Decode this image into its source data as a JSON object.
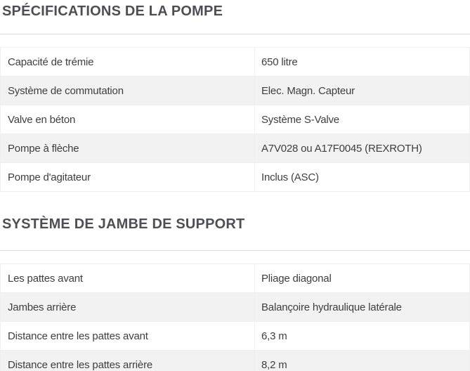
{
  "colors": {
    "title": "#4e4e57",
    "text": "#3e3e3e",
    "row_alternate": "#f2f2f2",
    "cell_border": "#efefef",
    "divider_rule": "#d9d9d9",
    "background": "#ffffff"
  },
  "sections": [
    {
      "title": "SPÉCIFICATIONS DE LA POMPE",
      "rows": [
        {
          "label": "Capacité de trémie",
          "value": "650 litre"
        },
        {
          "label": "Système de commutation",
          "value": "Elec. Magn. Capteur"
        },
        {
          "label": "Valve en béton",
          "value": "Système S-Valve"
        },
        {
          "label": "Pompe à flèche",
          "value": "A7V028 ou A17F0045 (REXROTH)"
        },
        {
          "label": "Pompe d'agitateur",
          "value": "Inclus (ASC)"
        }
      ]
    },
    {
      "title": "SYSTÈME DE JAMBE DE SUPPORT",
      "rows": [
        {
          "label": "Les pattes avant",
          "value": "Pliage diagonal"
        },
        {
          "label": "Jambes arrière",
          "value": "Balançoire hydraulique latérale"
        },
        {
          "label": "Distance entre les pattes avant",
          "value": "6,3 m"
        },
        {
          "label": "Distance entre les pattes arrière",
          "value": "8,2 m"
        }
      ]
    }
  ]
}
